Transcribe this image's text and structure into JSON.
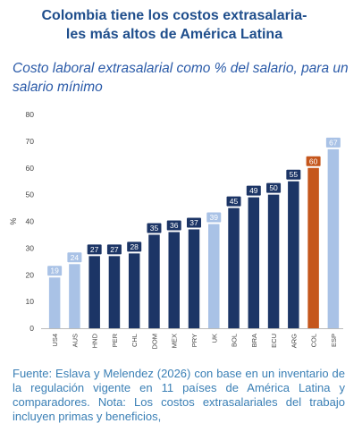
{
  "header": {
    "title_line1": "Colombia tiene los costos extrasalaria-",
    "title_line2": "les más altos de América Latina",
    "subtitle": "Costo laboral extrasalarial como % del salario, para un salario mínimo"
  },
  "chart_data": {
    "type": "bar",
    "categories": [
      "US4",
      "AUS",
      "HND",
      "PER",
      "CHL",
      "DOM",
      "MEX",
      "PRY",
      "UK",
      "BOL",
      "BRA",
      "ECU",
      "ARG",
      "COL",
      "ESP"
    ],
    "values": [
      19,
      24,
      27,
      27,
      28,
      35,
      36,
      37,
      39,
      45,
      49,
      50,
      55,
      60,
      67
    ],
    "groups": [
      "oecd",
      "oecd",
      "latam",
      "latam",
      "latam",
      "latam",
      "latam",
      "latam",
      "oecd",
      "latam",
      "latam",
      "latam",
      "latam",
      "colombia",
      "oecd"
    ],
    "colors": {
      "latam": "#1c3566",
      "oecd": "#a9c2e6",
      "colombia": "#c5561c"
    },
    "ylabel": "%",
    "ylim": [
      0,
      80
    ],
    "yticks": [
      0,
      10,
      20,
      30,
      40,
      50,
      60,
      70,
      80
    ],
    "grid": false,
    "data_labels": true
  },
  "footnote": "Fuente: Eslava y Melendez (2026) con base en un inventario de la regulación vigente en 11 países de América Latina y comparadores. Nota: Los costos extrasalariales del trabajo incluyen primas y beneficios,"
}
